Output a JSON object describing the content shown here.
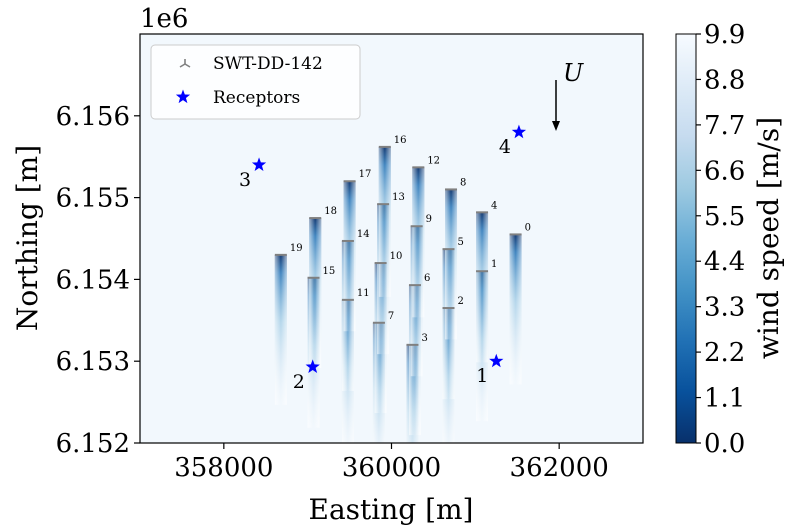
{
  "chart_data": {
    "type": "heatmap",
    "title": "",
    "xlabel": "Easting [m]",
    "ylabel": "Northing [m]",
    "y_offset_text": "1e6",
    "xlim": [
      357000,
      363000
    ],
    "ylim": [
      6.152,
      6.157
    ],
    "x_ticks": [
      358000,
      360000,
      362000
    ],
    "x_tick_labels": [
      "358000",
      "360000",
      "362000"
    ],
    "y_ticks": [
      6.152,
      6.153,
      6.154,
      6.155,
      6.156
    ],
    "y_tick_labels": [
      "6.152",
      "6.153",
      "6.154",
      "6.155",
      "6.156"
    ],
    "colorbar": {
      "label": "wind speed [m/s]",
      "range": [
        0.0,
        9.9
      ],
      "ticks": [
        "0.0",
        "1.1",
        "2.2",
        "3.3",
        "4.4",
        "5.5",
        "6.6",
        "7.7",
        "8.8",
        "9.9"
      ],
      "colormap": "Blues_r",
      "low_color": "#08306b",
      "high_color": "#f7fbff"
    },
    "legend": {
      "placement": "top-left",
      "entries": [
        {
          "label": "SWT-DD-142",
          "marker": "turbine",
          "color": "#808080"
        },
        {
          "label": "Receptors",
          "marker": "star",
          "color": "#0000ff"
        }
      ]
    },
    "turbines": [
      {
        "id": "0",
        "x": 361480,
        "y": 6.15455
      },
      {
        "id": "1",
        "x": 361080,
        "y": 6.1541
      },
      {
        "id": "2",
        "x": 360680,
        "y": 6.15365
      },
      {
        "id": "3",
        "x": 360250,
        "y": 6.1532
      },
      {
        "id": "4",
        "x": 361080,
        "y": 6.15482
      },
      {
        "id": "5",
        "x": 360680,
        "y": 6.15437
      },
      {
        "id": "6",
        "x": 360280,
        "y": 6.15393
      },
      {
        "id": "7",
        "x": 359850,
        "y": 6.15347
      },
      {
        "id": "8",
        "x": 360710,
        "y": 6.1551
      },
      {
        "id": "9",
        "x": 360300,
        "y": 6.15465
      },
      {
        "id": "10",
        "x": 359870,
        "y": 6.1542
      },
      {
        "id": "11",
        "x": 359480,
        "y": 6.15375
      },
      {
        "id": "12",
        "x": 360320,
        "y": 6.15537
      },
      {
        "id": "13",
        "x": 359900,
        "y": 6.15492
      },
      {
        "id": "14",
        "x": 359480,
        "y": 6.15447
      },
      {
        "id": "15",
        "x": 359070,
        "y": 6.15402
      },
      {
        "id": "16",
        "x": 359920,
        "y": 6.15562
      },
      {
        "id": "17",
        "x": 359500,
        "y": 6.1552
      },
      {
        "id": "18",
        "x": 359090,
        "y": 6.15475
      },
      {
        "id": "19",
        "x": 358680,
        "y": 6.1543
      }
    ],
    "receptors": [
      {
        "id": "1",
        "x": 361250,
        "y": 6.153
      },
      {
        "id": "2",
        "x": 359060,
        "y": 6.15293
      },
      {
        "id": "3",
        "x": 358420,
        "y": 6.1554
      },
      {
        "id": "4",
        "x": 361520,
        "y": 6.1558
      }
    ],
    "wind_direction_label": "U",
    "wind_direction": "south"
  }
}
